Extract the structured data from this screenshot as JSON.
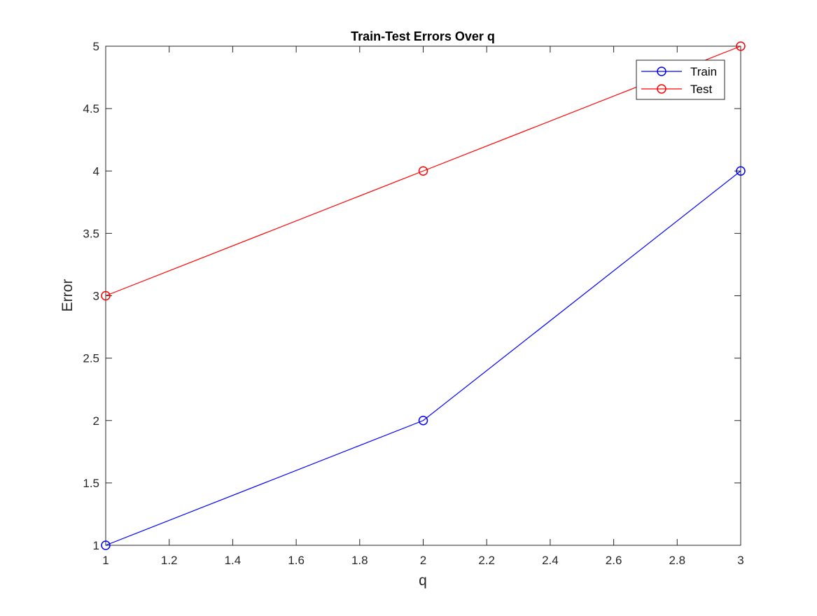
{
  "chart_data": {
    "type": "line",
    "title": "Train-Test Errors Over q",
    "xlabel": "q",
    "ylabel": "Error",
    "xlim": [
      1,
      3
    ],
    "ylim": [
      1,
      5
    ],
    "xticks": [
      1,
      1.2,
      1.4,
      1.6,
      1.8,
      2,
      2.2,
      2.4,
      2.6,
      2.8,
      3
    ],
    "xtick_labels": [
      "1",
      "1.2",
      "1.4",
      "1.6",
      "1.8",
      "2",
      "2.2",
      "2.4",
      "2.6",
      "2.8",
      "3"
    ],
    "yticks": [
      1,
      1.5,
      2,
      2.5,
      3,
      3.5,
      4,
      4.5,
      5
    ],
    "ytick_labels": [
      "1",
      "1.5",
      "2",
      "2.5",
      "3",
      "3.5",
      "4",
      "4.5",
      "5"
    ],
    "grid": false,
    "legend_position": "top-right",
    "series": [
      {
        "name": "Train",
        "color": "#0000ff",
        "marker": "circle-open",
        "x": [
          1,
          2,
          3
        ],
        "y": [
          1,
          2,
          4
        ]
      },
      {
        "name": "Test",
        "color": "#ff0000",
        "marker": "circle-open",
        "x": [
          1,
          2,
          3
        ],
        "y": [
          3,
          4,
          5
        ]
      }
    ]
  }
}
